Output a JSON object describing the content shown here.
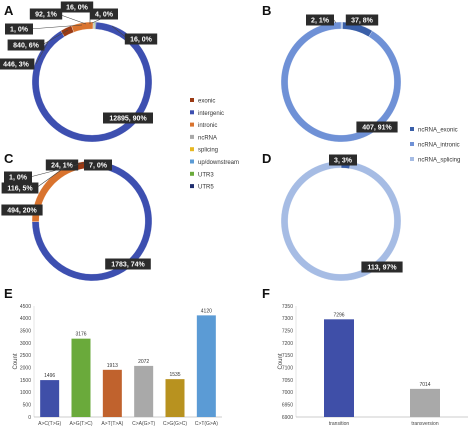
{
  "panel_letters": [
    "A",
    "B",
    "C",
    "D",
    "E",
    "F"
  ],
  "chart_data": [
    {
      "id": "A",
      "type": "pie",
      "labels": [
        "exonic",
        "intergenic",
        "intronic",
        "ncRNA",
        "splicing",
        "up/downstream",
        "UTR3",
        "UTR5"
      ],
      "values": [
        446,
        12895,
        840,
        1,
        0,
        92,
        4,
        16
      ],
      "slice_order": [
        "up/downstream",
        "UTR3",
        "UTR5",
        "intergenic",
        "exonic",
        "intronic",
        "ncRNA"
      ],
      "data_labels": {
        "up/downstream": "92, 1%",
        "UTR3": "4, 0%",
        "UTR5": "16, 0%",
        "intergenic": "12895, 90%",
        "exonic": "446, 3%",
        "intronic": "840, 6%",
        "ncRNA": "1, 0%",
        "extra": "16, 0%"
      }
    },
    {
      "id": "B",
      "type": "pie",
      "labels": [
        "ncRNA_exonic",
        "ncRNA_intronic",
        "ncRNA_splicing"
      ],
      "values": [
        37,
        407,
        2
      ],
      "data_labels": {
        "ncRNA_exonic": "37, 8%",
        "ncRNA_intronic": "407, 91%",
        "ncRNA_splicing": "2, 1%"
      }
    },
    {
      "id": "C",
      "type": "pie",
      "labels": [
        "exonic",
        "intergenic",
        "intronic",
        "ncRNA",
        "splicing",
        "up/downstream",
        "UTR3",
        "UTR5"
      ],
      "values": [
        116,
        1783,
        494,
        1,
        0,
        24,
        7,
        0
      ],
      "slice_order": [
        "up/downstream",
        "UTR3",
        "intergenic",
        "intronic",
        "exonic",
        "ncRNA"
      ],
      "data_labels": {
        "up/downstream": "24, 1%",
        "UTR3": "7, 0%",
        "intergenic": "1783, 74%",
        "intronic": "494, 20%",
        "exonic": "116, 5%",
        "ncRNA": "1, 0%"
      }
    },
    {
      "id": "D",
      "type": "pie",
      "labels": [
        "ncRNA_exonic",
        "ncRNA_splicing"
      ],
      "values": [
        3,
        113
      ],
      "data_labels": {
        "ncRNA_exonic": "3, 3%",
        "ncRNA_splicing": "113, 97%"
      }
    },
    {
      "id": "E",
      "type": "bar",
      "categories": [
        "A>C(T>G)",
        "A>G(T>C)",
        "A>T(T>A)",
        "C>A(G>T)",
        "C>G(G>C)",
        "C>T(G>A)"
      ],
      "values": [
        1496,
        3176,
        1913,
        2072,
        1535,
        4120
      ],
      "ylabel": "Count",
      "ylim": [
        0,
        4500
      ],
      "yticks": [
        "0",
        "500",
        "1000",
        "1500",
        "2000",
        "2500",
        "3000",
        "3500",
        "4000",
        "4500"
      ]
    },
    {
      "id": "F",
      "type": "bar",
      "categories": [
        "transition",
        "transversion"
      ],
      "values": [
        7296,
        7014
      ],
      "ylabel": "Count",
      "ylim": [
        6900,
        7350
      ],
      "yticks": [
        "6900",
        "6950",
        "7000",
        "7050",
        "7100",
        "7150",
        "7200",
        "7250",
        "7300",
        "7350"
      ]
    }
  ],
  "legend_ac": {
    "items": [
      "exonic",
      "intergenic",
      "intronic",
      "ncRNA",
      "splicing",
      "up/downstream",
      "UTR3",
      "UTR5"
    ],
    "colors": [
      "#9b3a14",
      "#3d4fb0",
      "#d9732e",
      "#a9a9a9",
      "#e7b823",
      "#5b9bd5",
      "#6aaa3b",
      "#1f2d6e"
    ]
  },
  "legend_bd": {
    "items": [
      "ncRNA_exonic",
      "ncRNA_intronic",
      "ncRNA_splicing"
    ],
    "colors": [
      "#3a5fa8",
      "#6f91d6",
      "#a6bce4"
    ]
  },
  "colors": {
    "intergenic": "#3d4fb0",
    "intronic": "#d9732e",
    "exonic": "#9b3a14",
    "ncRNA": "#a9a9a9",
    "updown": "#8c9a8c",
    "utr3": "#6aaa3b",
    "utr5": "#1f2d6e",
    "b_exonic": "#3a5fa8",
    "b_intronic": "#6f91d6",
    "b_splicing": "#a6bce4",
    "e_bars": [
      "#3f4fa8",
      "#6aaa3b",
      "#c0622d",
      "#a9a9a9",
      "#b8921f",
      "#5b9bd5"
    ],
    "f_bars": [
      "#3f4fa8",
      "#a9a9a9"
    ]
  }
}
